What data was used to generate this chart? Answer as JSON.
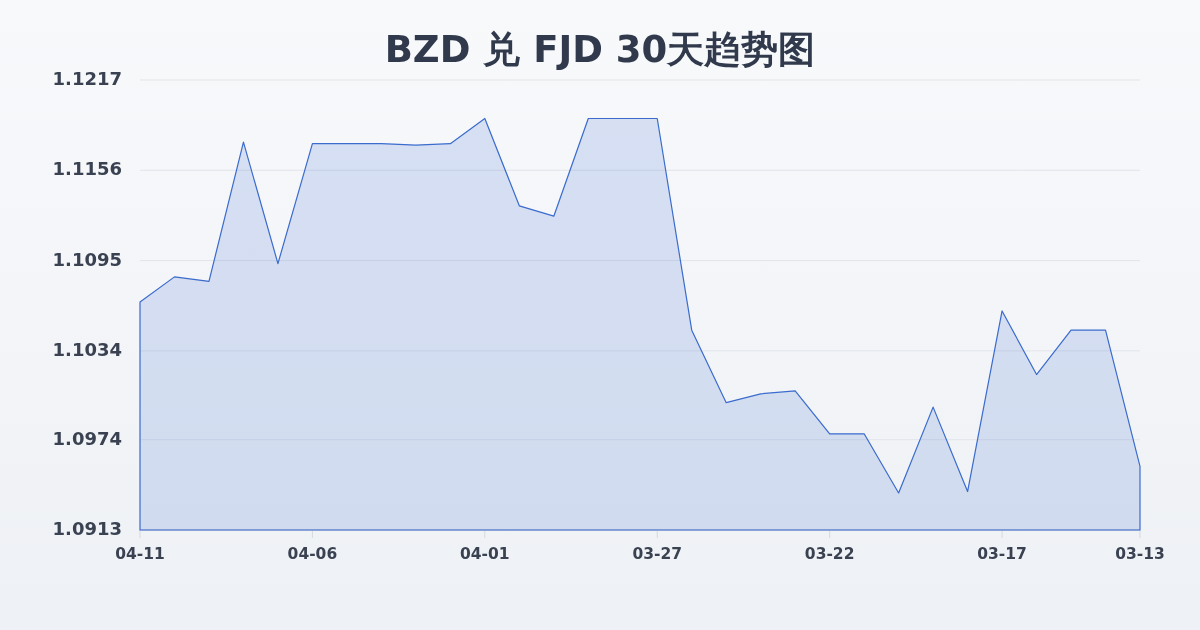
{
  "chart_data": {
    "type": "area",
    "title": "BZD 兑 FJD 30天趋势图",
    "categories": [
      "04-11",
      null,
      null,
      null,
      null,
      "04-06",
      null,
      null,
      null,
      null,
      "04-01",
      null,
      null,
      null,
      null,
      "03-27",
      null,
      null,
      null,
      null,
      "03-22",
      null,
      null,
      null,
      null,
      "03-17",
      null,
      null,
      null,
      "03-13"
    ],
    "values": [
      1.1067,
      1.1084,
      1.1081,
      1.1175,
      1.1093,
      1.1174,
      1.1174,
      1.1174,
      1.1173,
      1.1174,
      1.1191,
      1.1132,
      1.1125,
      1.1191,
      1.1191,
      1.1191,
      1.1048,
      1.0999,
      1.1005,
      1.1007,
      1.0978,
      1.0978,
      1.0938,
      1.0996,
      1.0939,
      1.1061,
      1.1018,
      1.1048,
      1.1048,
      1.0956
    ],
    "color": "#3a6bcd",
    "ylim": [
      1.0913,
      1.1217
    ],
    "yticks": [
      1.0913,
      1.0974,
      1.1034,
      1.1095,
      1.1156,
      1.1217
    ],
    "grid": "y"
  }
}
